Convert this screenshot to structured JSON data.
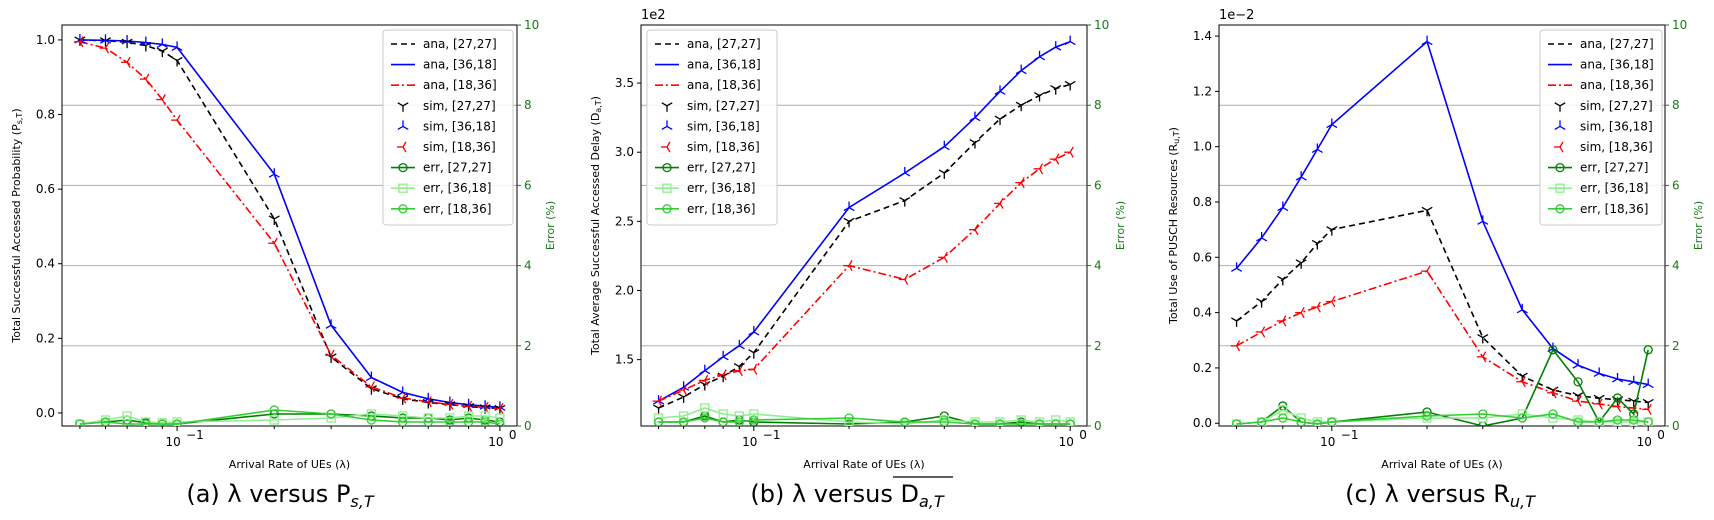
{
  "chart_data": [
    {
      "type": "line",
      "caption": "(a) λ versus P",
      "caption_sub": "s,T",
      "xlabel": "Arrival Rate of UEs (λ)",
      "ylabel": "Total Successful Accessed Probability (P",
      "ylabel_sub": "s,T",
      "ylabel_close": ")",
      "y2label": "Error (%)",
      "offset_text": "",
      "xscale": "log",
      "xlim": [
        0.044,
        1.13
      ],
      "ylim": [
        -0.035,
        1.04
      ],
      "yticks": [
        0.0,
        0.2,
        0.4,
        0.6,
        0.8,
        1.0
      ],
      "ytick_labels": [
        "0.0",
        "0.2",
        "0.4",
        "0.6",
        "0.8",
        "1.0"
      ],
      "y2lim": [
        0,
        10
      ],
      "y2ticks": [
        0,
        2,
        4,
        6,
        8,
        10
      ],
      "y2tick_labels": [
        "0",
        "2",
        "4",
        "6",
        "8",
        "10"
      ],
      "xtick_labels": [
        "10",
        "10"
      ],
      "xtick_exponents": [
        "−1",
        "0"
      ],
      "x": [
        0.05,
        0.06,
        0.07,
        0.08,
        0.09,
        0.1,
        0.2,
        0.3,
        0.4,
        0.5,
        0.6,
        0.7,
        0.8,
        0.9,
        1.0
      ],
      "legend_position": "top-right",
      "series": [
        {
          "name": "ana, [27,27]",
          "role": "ana",
          "color": "#000000",
          "values": [
            1.0,
            0.998,
            0.994,
            0.985,
            0.97,
            0.945,
            0.52,
            0.15,
            0.065,
            0.038,
            0.028,
            0.022,
            0.017,
            0.014,
            0.012
          ]
        },
        {
          "name": "ana, [36,18]",
          "role": "ana",
          "color": "#0000ff",
          "values": [
            1.0,
            0.999,
            0.997,
            0.993,
            0.988,
            0.98,
            0.64,
            0.235,
            0.095,
            0.055,
            0.038,
            0.028,
            0.022,
            0.018,
            0.015
          ]
        },
        {
          "name": "ana, [18,36]",
          "role": "ana",
          "color": "#ff0000",
          "values": [
            0.995,
            0.978,
            0.94,
            0.895,
            0.84,
            0.785,
            0.455,
            0.155,
            0.07,
            0.04,
            0.03,
            0.023,
            0.018,
            0.015,
            0.012
          ]
        },
        {
          "name": "sim, [27,27]",
          "role": "sim",
          "color": "#000000",
          "values": [
            1.0,
            0.998,
            0.994,
            0.985,
            0.97,
            0.945,
            0.52,
            0.15,
            0.065,
            0.038,
            0.028,
            0.022,
            0.017,
            0.014,
            0.012
          ]
        },
        {
          "name": "sim, [36,18]",
          "role": "sim",
          "color": "#0000ff",
          "values": [
            1.0,
            0.999,
            0.997,
            0.993,
            0.988,
            0.98,
            0.64,
            0.235,
            0.095,
            0.055,
            0.038,
            0.028,
            0.022,
            0.018,
            0.015
          ]
        },
        {
          "name": "sim, [18,36]",
          "role": "sim",
          "color": "#ff0000",
          "values": [
            0.995,
            0.978,
            0.94,
            0.895,
            0.84,
            0.785,
            0.455,
            0.155,
            0.07,
            0.04,
            0.03,
            0.023,
            0.018,
            0.015,
            0.012
          ]
        },
        {
          "name": "err, [27,27]",
          "role": "err",
          "color": "#008000",
          "marker": "circle",
          "values": [
            0.05,
            0.1,
            0.15,
            0.08,
            0.05,
            0.05,
            0.3,
            0.3,
            0.25,
            0.2,
            0.2,
            0.15,
            0.2,
            0.15,
            0.1
          ]
        },
        {
          "name": "err, [36,18]",
          "role": "err",
          "color": "#90ee90",
          "marker": "square",
          "values": [
            0.05,
            0.15,
            0.25,
            0.1,
            0.08,
            0.1,
            0.15,
            0.2,
            0.3,
            0.25,
            0.2,
            0.2,
            0.25,
            0.25,
            0.2
          ]
        },
        {
          "name": "err, [18,36]",
          "role": "err",
          "color": "#32cd32",
          "marker": "circle",
          "values": [
            0.05,
            0.1,
            0.05,
            0.05,
            0.05,
            0.05,
            0.4,
            0.3,
            0.15,
            0.1,
            0.1,
            0.1,
            0.1,
            0.1,
            0.05
          ]
        }
      ]
    },
    {
      "type": "line",
      "caption": "(b) λ versus D",
      "caption_sub": "a,T",
      "xlabel": "Arrival Rate of UEs (λ)",
      "ylabel": "Total Average Successful Accessed Delay (D",
      "ylabel_sub": "a,T",
      "ylabel_close": ")",
      "y2label": "Error (%)",
      "offset_text": "1e2",
      "xscale": "log",
      "xlim": [
        0.044,
        1.13
      ],
      "ylim": [
        1.02,
        3.92
      ],
      "yticks": [
        1.5,
        2.0,
        2.5,
        3.0,
        3.5
      ],
      "ytick_labels": [
        "1.5",
        "2.0",
        "2.5",
        "3.0",
        "3.5"
      ],
      "y2lim": [
        0,
        10
      ],
      "y2ticks": [
        0,
        2,
        4,
        6,
        8,
        10
      ],
      "y2tick_labels": [
        "0",
        "2",
        "4",
        "6",
        "8",
        "10"
      ],
      "xtick_labels": [
        "10",
        "10"
      ],
      "xtick_exponents": [
        "−1",
        "0"
      ],
      "x": [
        0.05,
        0.06,
        0.07,
        0.08,
        0.09,
        0.1,
        0.2,
        0.3,
        0.4,
        0.5,
        0.6,
        0.7,
        0.8,
        0.9,
        1.0
      ],
      "legend_position": "top-left",
      "series": [
        {
          "name": "ana, [27,27]",
          "role": "ana",
          "color": "#000000",
          "values": [
            1.15,
            1.23,
            1.32,
            1.38,
            1.45,
            1.55,
            2.5,
            2.65,
            2.85,
            3.07,
            3.24,
            3.34,
            3.41,
            3.46,
            3.49
          ]
        },
        {
          "name": "ana, [36,18]",
          "role": "ana",
          "color": "#0000ff",
          "values": [
            1.2,
            1.3,
            1.42,
            1.52,
            1.6,
            1.7,
            2.6,
            2.85,
            3.04,
            3.25,
            3.44,
            3.59,
            3.69,
            3.76,
            3.8
          ]
        },
        {
          "name": "ana, [18,36]",
          "role": "ana",
          "color": "#ff0000",
          "values": [
            1.2,
            1.28,
            1.35,
            1.39,
            1.42,
            1.43,
            2.18,
            2.08,
            2.24,
            2.44,
            2.63,
            2.78,
            2.88,
            2.95,
            3.0
          ]
        },
        {
          "name": "sim, [27,27]",
          "role": "sim",
          "color": "#000000",
          "values": [
            1.15,
            1.23,
            1.32,
            1.38,
            1.45,
            1.55,
            2.5,
            2.65,
            2.85,
            3.07,
            3.24,
            3.34,
            3.41,
            3.46,
            3.49
          ]
        },
        {
          "name": "sim, [36,18]",
          "role": "sim",
          "color": "#0000ff",
          "values": [
            1.2,
            1.3,
            1.42,
            1.52,
            1.6,
            1.7,
            2.6,
            2.85,
            3.04,
            3.25,
            3.44,
            3.59,
            3.69,
            3.76,
            3.8
          ]
        },
        {
          "name": "sim, [18,36]",
          "role": "sim",
          "color": "#ff0000",
          "values": [
            1.2,
            1.28,
            1.35,
            1.39,
            1.42,
            1.43,
            2.18,
            2.08,
            2.24,
            2.44,
            2.63,
            2.78,
            2.88,
            2.95,
            3.0
          ]
        },
        {
          "name": "err, [27,27]",
          "role": "err",
          "color": "#008000",
          "marker": "circle",
          "values": [
            0.1,
            0.1,
            0.25,
            0.1,
            0.15,
            0.1,
            0.05,
            0.1,
            0.25,
            0.05,
            0.05,
            0.1,
            0.05,
            0.05,
            0.05
          ]
        },
        {
          "name": "err, [36,18]",
          "role": "err",
          "color": "#90ee90",
          "marker": "square",
          "values": [
            0.2,
            0.25,
            0.45,
            0.3,
            0.25,
            0.3,
            0.1,
            0.05,
            0.15,
            0.1,
            0.1,
            0.15,
            0.1,
            0.15,
            0.1
          ]
        },
        {
          "name": "err, [18,36]",
          "role": "err",
          "color": "#32cd32",
          "marker": "circle",
          "values": [
            0.1,
            0.1,
            0.2,
            0.1,
            0.1,
            0.15,
            0.2,
            0.1,
            0.1,
            0.05,
            0.05,
            0.05,
            0.05,
            0.05,
            0.05
          ]
        }
      ]
    },
    {
      "type": "line",
      "caption": "(c) λ versus R",
      "caption_sub": "u,T",
      "xlabel": "Arrival Rate of UEs (λ)",
      "ylabel": "Total Use of PUSCH Resources (R",
      "ylabel_sub": "u,T",
      "ylabel_close": ")",
      "y2label": "Error (%)",
      "offset_text": "1e−2",
      "xscale": "log",
      "xlim": [
        0.044,
        1.13
      ],
      "ylim": [
        -0.01,
        1.44
      ],
      "yticks": [
        0.0,
        0.2,
        0.4,
        0.6,
        0.8,
        1.0,
        1.2,
        1.4
      ],
      "ytick_labels": [
        "0.0",
        "0.2",
        "0.4",
        "0.6",
        "0.8",
        "1.0",
        "1.2",
        "1.4"
      ],
      "y2lim": [
        0,
        10
      ],
      "y2ticks": [
        0,
        2,
        4,
        6,
        8,
        10
      ],
      "y2tick_labels": [
        "0",
        "2",
        "4",
        "6",
        "8",
        "10"
      ],
      "xtick_labels": [
        "10",
        "10"
      ],
      "xtick_exponents": [
        "−1",
        "0"
      ],
      "x": [
        0.05,
        0.06,
        0.07,
        0.08,
        0.09,
        0.1,
        0.2,
        0.3,
        0.4,
        0.5,
        0.6,
        0.7,
        0.8,
        0.9,
        1.0
      ],
      "legend_position": "top-right",
      "series": [
        {
          "name": "ana, [27,27]",
          "role": "ana",
          "color": "#000000",
          "values": [
            0.37,
            0.44,
            0.52,
            0.58,
            0.65,
            0.7,
            0.77,
            0.31,
            0.17,
            0.12,
            0.1,
            0.09,
            0.085,
            0.08,
            0.075
          ]
        },
        {
          "name": "ana, [36,18]",
          "role": "ana",
          "color": "#0000ff",
          "values": [
            0.56,
            0.67,
            0.78,
            0.89,
            0.99,
            1.08,
            1.38,
            0.73,
            0.41,
            0.27,
            0.21,
            0.18,
            0.16,
            0.15,
            0.14
          ]
        },
        {
          "name": "ana, [18,36]",
          "role": "ana",
          "color": "#ff0000",
          "values": [
            0.28,
            0.33,
            0.37,
            0.4,
            0.42,
            0.44,
            0.55,
            0.24,
            0.15,
            0.11,
            0.08,
            0.07,
            0.06,
            0.055,
            0.05
          ]
        },
        {
          "name": "sim, [27,27]",
          "role": "sim",
          "color": "#000000",
          "values": [
            0.37,
            0.44,
            0.52,
            0.58,
            0.65,
            0.7,
            0.77,
            0.31,
            0.17,
            0.12,
            0.1,
            0.09,
            0.085,
            0.08,
            0.075
          ]
        },
        {
          "name": "sim, [36,18]",
          "role": "sim",
          "color": "#0000ff",
          "values": [
            0.56,
            0.67,
            0.78,
            0.89,
            0.99,
            1.08,
            1.38,
            0.73,
            0.41,
            0.27,
            0.21,
            0.18,
            0.16,
            0.15,
            0.14
          ]
        },
        {
          "name": "sim, [18,36]",
          "role": "sim",
          "color": "#ff0000",
          "values": [
            0.28,
            0.33,
            0.37,
            0.4,
            0.42,
            0.44,
            0.55,
            0.24,
            0.15,
            0.11,
            0.08,
            0.07,
            0.06,
            0.055,
            0.05
          ]
        },
        {
          "name": "err, [27,27]",
          "role": "err",
          "color": "#008000",
          "marker": "circle",
          "values": [
            0.05,
            0.1,
            0.5,
            0.1,
            0.05,
            0.1,
            0.35,
            0.0,
            0.2,
            1.9,
            1.1,
            0.1,
            0.7,
            0.3,
            1.9
          ]
        },
        {
          "name": "err, [36,18]",
          "role": "err",
          "color": "#90ee90",
          "marker": "square",
          "values": [
            0.05,
            0.1,
            0.4,
            0.2,
            0.1,
            0.1,
            0.2,
            0.2,
            0.3,
            0.2,
            0.15,
            0.1,
            0.1,
            0.1,
            0.1
          ]
        },
        {
          "name": "err, [18,36]",
          "role": "err",
          "color": "#32cd32",
          "marker": "circle",
          "values": [
            0.05,
            0.1,
            0.2,
            0.1,
            0.05,
            0.1,
            0.25,
            0.3,
            0.2,
            0.3,
            0.1,
            0.1,
            0.15,
            0.15,
            0.1
          ]
        }
      ]
    }
  ]
}
